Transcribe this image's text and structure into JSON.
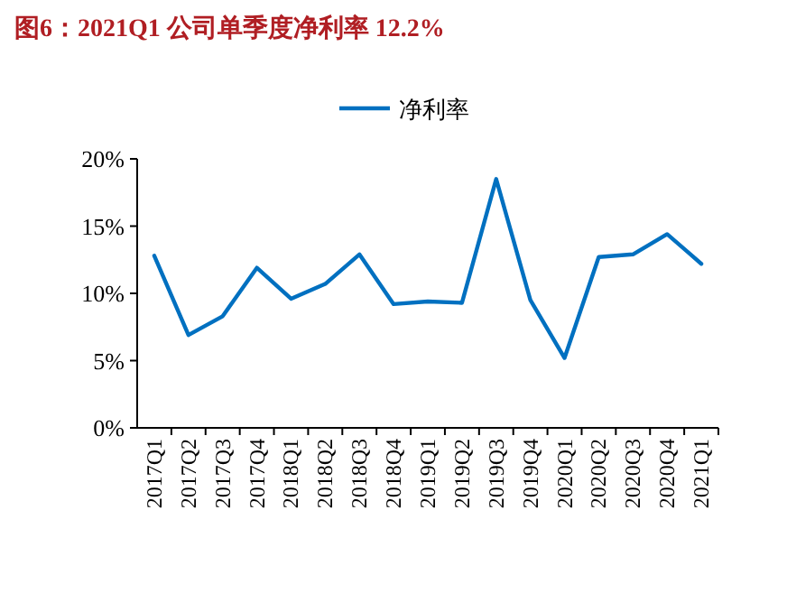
{
  "chart_data": {
    "type": "line",
    "title": "图6：2021Q1 公司单季度净利率 12.2%",
    "categories": [
      "2017Q1",
      "2017Q2",
      "2017Q3",
      "2017Q4",
      "2018Q1",
      "2018Q2",
      "2018Q3",
      "2018Q4",
      "2019Q1",
      "2019Q2",
      "2019Q3",
      "2019Q4",
      "2020Q1",
      "2020Q2",
      "2020Q3",
      "2020Q4",
      "2021Q1"
    ],
    "series": [
      {
        "name": "净利率",
        "color": "#0070c0",
        "values": [
          12.8,
          6.9,
          8.3,
          11.9,
          9.6,
          10.7,
          12.9,
          9.2,
          9.4,
          9.3,
          18.5,
          9.5,
          5.2,
          12.7,
          12.9,
          14.4,
          12.2
        ]
      }
    ],
    "ylim": [
      0,
      20
    ],
    "yticks": [
      {
        "value": 0,
        "label": "0%"
      },
      {
        "value": 5,
        "label": "5%"
      },
      {
        "value": 10,
        "label": "10%"
      },
      {
        "value": 15,
        "label": "15%"
      },
      {
        "value": 20,
        "label": "20%"
      }
    ],
    "legend": "top",
    "marker": "none",
    "line_style": "solid"
  }
}
